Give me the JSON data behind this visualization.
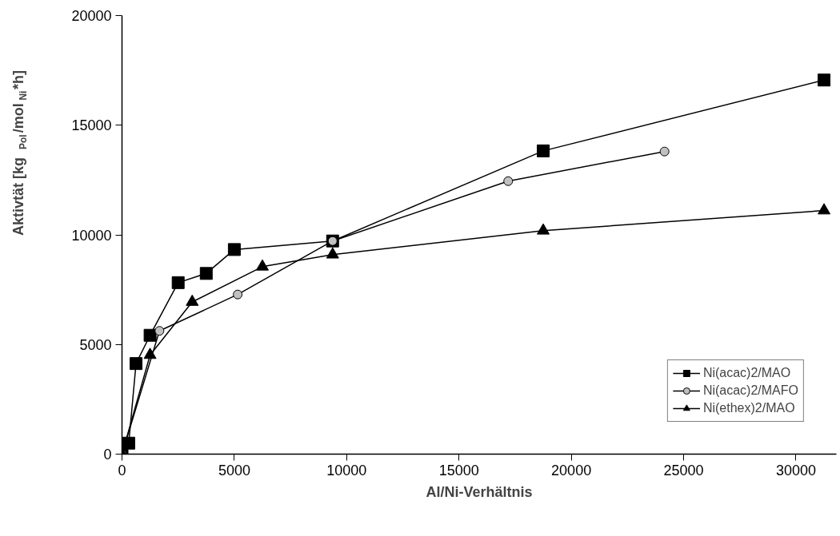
{
  "chart_data": {
    "type": "line",
    "xlabel": "Al/Ni-Verhältnis",
    "ylabel": "Aktivtät [kg$_{Pol}$/mol$_{Ni}$*h]",
    "xlim": [
      0,
      31800
    ],
    "ylim": [
      0,
      20000
    ],
    "xticks": [
      0,
      5000,
      10000,
      15000,
      20000,
      25000,
      30000
    ],
    "yticks": [
      0,
      5000,
      10000,
      15000,
      20000
    ],
    "grid": false,
    "legend": "bottom right",
    "series": [
      {
        "name": "Ni(acac)2/MAO",
        "color": "#000000",
        "marker": "square",
        "x": [
          0,
          300,
          625,
          1250,
          2500,
          3750,
          5000,
          9375,
          18750,
          31250
        ],
        "values": [
          0,
          500,
          4130,
          5420,
          7820,
          8240,
          9330,
          9720,
          13830,
          17060
        ]
      },
      {
        "name": "Ni(acac)2/MAFO",
        "color": "#c0c0c0",
        "marker": "circle",
        "x": [
          0,
          1667,
          5150,
          9375,
          17190,
          24150
        ],
        "values": [
          0,
          5620,
          7280,
          9720,
          12450,
          13800
        ]
      },
      {
        "name": "Ni(ethex)2/MAO",
        "color": "#000000",
        "marker": "triangle",
        "x": [
          0,
          1250,
          3125,
          6250,
          9375,
          18750,
          31250
        ],
        "values": [
          0,
          4520,
          6940,
          8550,
          9100,
          10190,
          11110
        ]
      }
    ]
  }
}
